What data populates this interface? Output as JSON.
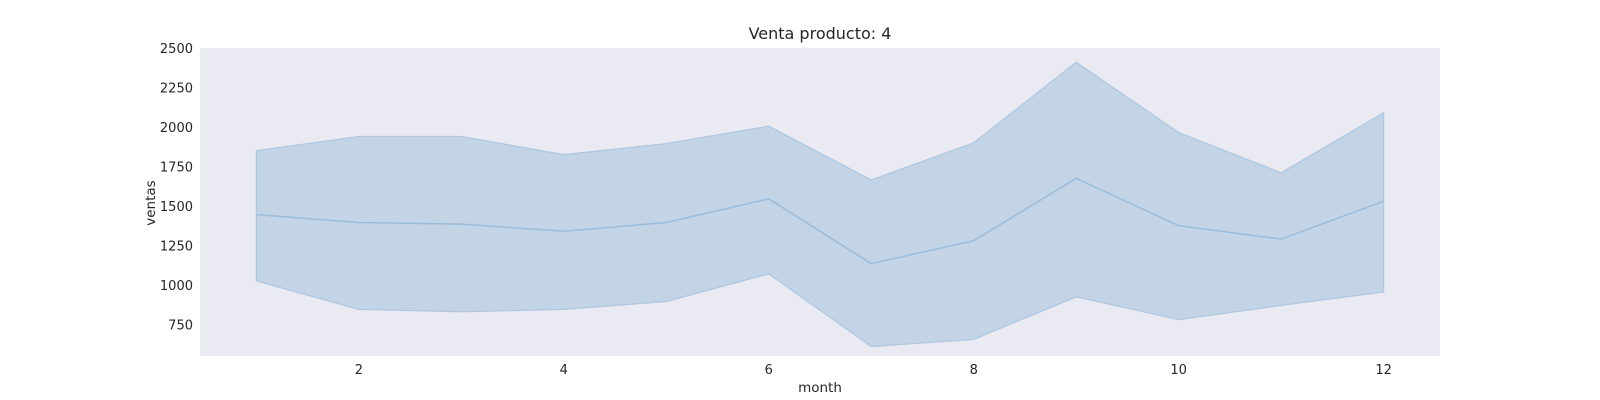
{
  "chart_data": {
    "type": "line",
    "title": "Venta producto: 4",
    "xlabel": "month",
    "ylabel": "ventas",
    "xlim": [
      0.45,
      12.55
    ],
    "ylim": [
      550,
      2500
    ],
    "xticks": [
      2,
      4,
      6,
      8,
      10,
      12
    ],
    "yticks": [
      750,
      1000,
      1250,
      1500,
      1750,
      2000,
      2250,
      2500
    ],
    "grid": false,
    "colors": {
      "line": "#9bbcd9",
      "band": "#a8c4df",
      "plot_bg": "#eaeaf2"
    },
    "series": [
      {
        "x": [
          1,
          2,
          3,
          4,
          5,
          6,
          7,
          8,
          9,
          10,
          11,
          12
        ],
        "y": [
          1445,
          1395,
          1385,
          1340,
          1395,
          1545,
          1135,
          1280,
          1675,
          1375,
          1290,
          1530
        ],
        "ci_lower": [
          1025,
          845,
          830,
          845,
          895,
          1070,
          610,
          655,
          925,
          780,
          870,
          955
        ],
        "ci_upper": [
          1850,
          1940,
          1940,
          1825,
          1895,
          2005,
          1665,
          1900,
          2410,
          1965,
          1710,
          2090
        ]
      }
    ]
  }
}
